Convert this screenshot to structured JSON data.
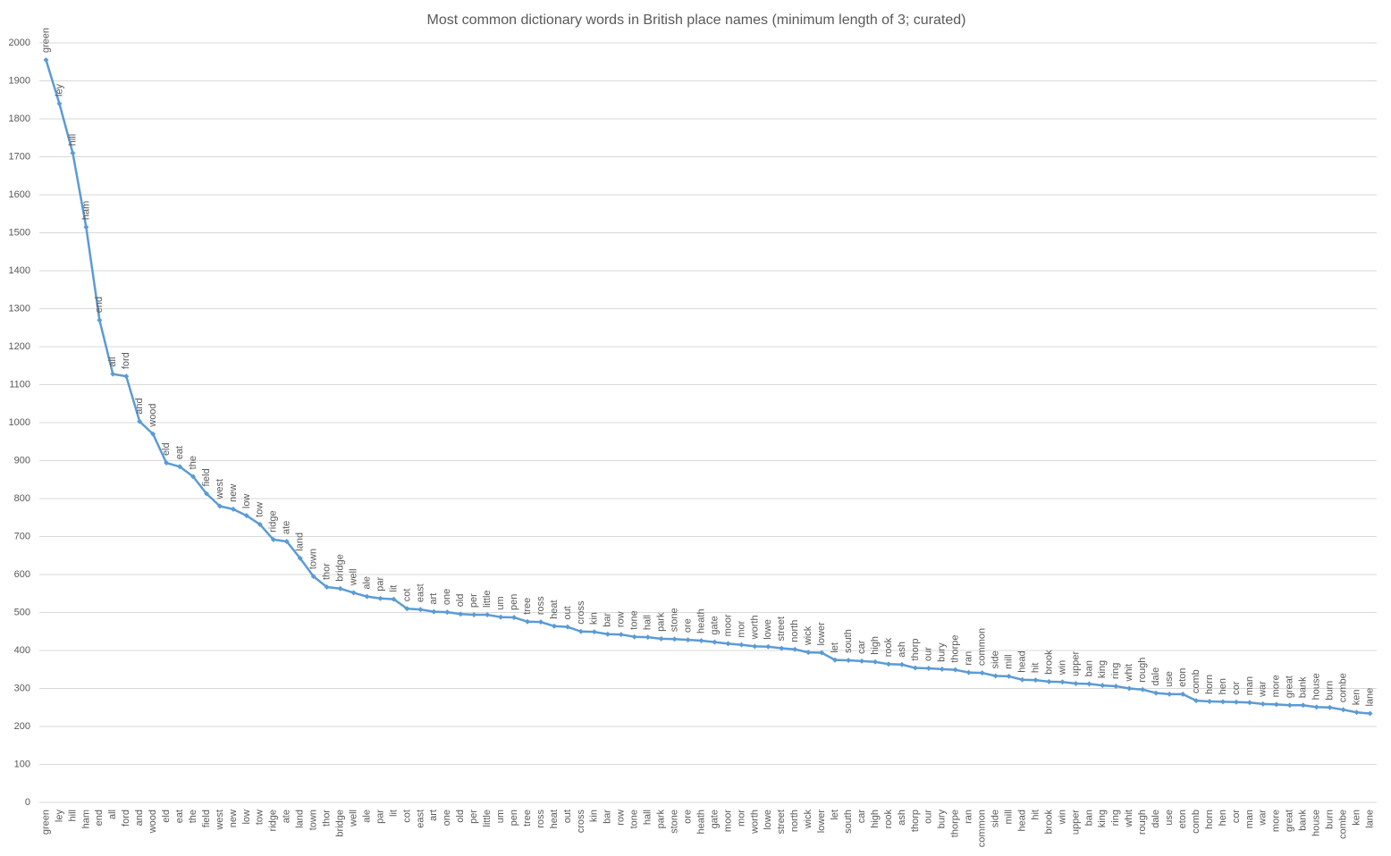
{
  "chart_data": {
    "type": "line",
    "title": "Most common dictionary words in British place names (minimum length of 3; curated)",
    "categories": [
      "green",
      "ley",
      "hill",
      "ham",
      "end",
      "all",
      "ford",
      "and",
      "wood",
      "eld",
      "eat",
      "the",
      "field",
      "west",
      "new",
      "low",
      "tow",
      "ridge",
      "ate",
      "land",
      "town",
      "thor",
      "bridge",
      "well",
      "ale",
      "par",
      "lit",
      "cot",
      "east",
      "art",
      "one",
      "old",
      "per",
      "little",
      "um",
      "pen",
      "tree",
      "ross",
      "heat",
      "out",
      "cross",
      "kin",
      "bar",
      "row",
      "tone",
      "hall",
      "park",
      "stone",
      "ore",
      "heath",
      "gate",
      "moor",
      "mor",
      "worth",
      "lowe",
      "street",
      "north",
      "wick",
      "lower",
      "let",
      "south",
      "car",
      "high",
      "rook",
      "ash",
      "thorp",
      "our",
      "bury",
      "thorpe",
      "ran",
      "common",
      "side",
      "mill",
      "head",
      "hit",
      "brook",
      "win",
      "upper",
      "ban",
      "king",
      "ring",
      "whit",
      "rough",
      "dale",
      "use",
      "eton",
      "comb",
      "horn",
      "hen",
      "cor",
      "man",
      "war",
      "more",
      "great",
      "bank",
      "house",
      "burn",
      "combe",
      "ken",
      "lane"
    ],
    "values": [
      1955,
      1840,
      1710,
      1515,
      1270,
      1128,
      1122,
      1003,
      970,
      894,
      884,
      858,
      813,
      780,
      772,
      755,
      732,
      692,
      687,
      643,
      595,
      567,
      563,
      552,
      542,
      537,
      535,
      510,
      508,
      502,
      501,
      496,
      494,
      494,
      488,
      487,
      476,
      475,
      464,
      462,
      450,
      449,
      443,
      442,
      436,
      435,
      431,
      430,
      428,
      426,
      422,
      418,
      415,
      411,
      410,
      406,
      403,
      395,
      394,
      375,
      374,
      372,
      370,
      364,
      363,
      354,
      353,
      351,
      349,
      342,
      341,
      333,
      332,
      323,
      322,
      318,
      317,
      313,
      312,
      308,
      306,
      300,
      297,
      288,
      285,
      285,
      268,
      266,
      265,
      264,
      263,
      259,
      258,
      256,
      256,
      251,
      250,
      244,
      237,
      234
    ],
    "color": "#5b9bd5",
    "ylim": [
      0,
      2000
    ],
    "yticks": [
      0,
      100,
      200,
      300,
      400,
      500,
      600,
      700,
      800,
      900,
      1000,
      1100,
      1200,
      1300,
      1400,
      1500,
      1600,
      1700,
      1800,
      1900,
      2000
    ],
    "grid": true
  }
}
